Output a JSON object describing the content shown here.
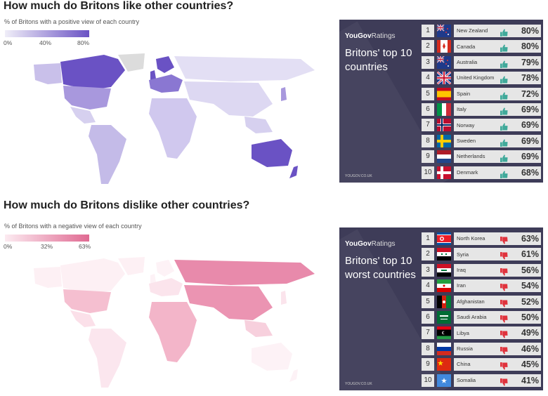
{
  "like": {
    "title": "How much do Britons like other countries?",
    "subtitle": "% of Britons with a positive view of each country",
    "legend": {
      "ticks": [
        "0%",
        "40%",
        "80%"
      ],
      "color_low": "#f0eef8",
      "color_high": "#6a52c4"
    },
    "panel": {
      "brand": "YouGov",
      "brand_suffix": "Ratings",
      "heading": "Britons' top 10 countries",
      "url": "YOUGOV.CO.UK",
      "rows": [
        {
          "rank": "1",
          "country": "New Zealand",
          "pct": "80%",
          "flag": "new-zealand"
        },
        {
          "rank": "2",
          "country": "Canada",
          "pct": "80%",
          "flag": "canada"
        },
        {
          "rank": "3",
          "country": "Australia",
          "pct": "79%",
          "flag": "australia"
        },
        {
          "rank": "4",
          "country": "United Kingdom",
          "pct": "78%",
          "flag": "united-kingdom"
        },
        {
          "rank": "5",
          "country": "Spain",
          "pct": "72%",
          "flag": "spain"
        },
        {
          "rank": "6",
          "country": "Italy",
          "pct": "69%",
          "flag": "italy"
        },
        {
          "rank": "7",
          "country": "Norway",
          "pct": "69%",
          "flag": "norway"
        },
        {
          "rank": "8",
          "country": "Sweden",
          "pct": "69%",
          "flag": "sweden"
        },
        {
          "rank": "9",
          "country": "Netherlands",
          "pct": "69%",
          "flag": "netherlands"
        },
        {
          "rank": "10",
          "country": "Denmark",
          "pct": "68%",
          "flag": "denmark"
        }
      ],
      "thumb_icon": "thumbs-up-icon",
      "thumb_color": "#3fa99a"
    }
  },
  "dislike": {
    "title": "How much do Britons dislike other countries?",
    "subtitle": "% of Britons with a negative view of each country",
    "legend": {
      "ticks": [
        "0%",
        "32%",
        "63%"
      ],
      "color_low": "#fcebf1",
      "color_high": "#e06a92"
    },
    "panel": {
      "brand": "YouGov",
      "brand_suffix": "Ratings",
      "heading": "Britons' top 10 worst countries",
      "url": "YOUGOV.CO.UK",
      "rows": [
        {
          "rank": "1",
          "country": "North Korea",
          "pct": "63%",
          "flag": "north-korea"
        },
        {
          "rank": "2",
          "country": "Syria",
          "pct": "61%",
          "flag": "syria"
        },
        {
          "rank": "3",
          "country": "Iraq",
          "pct": "56%",
          "flag": "iraq"
        },
        {
          "rank": "4",
          "country": "Iran",
          "pct": "54%",
          "flag": "iran"
        },
        {
          "rank": "5",
          "country": "Afghanistan",
          "pct": "52%",
          "flag": "afghanistan"
        },
        {
          "rank": "6",
          "country": "Saudi Arabia",
          "pct": "50%",
          "flag": "saudi-arabia"
        },
        {
          "rank": "7",
          "country": "Libya",
          "pct": "49%",
          "flag": "libya"
        },
        {
          "rank": "8",
          "country": "Russia",
          "pct": "46%",
          "flag": "russia"
        },
        {
          "rank": "9",
          "country": "China",
          "pct": "45%",
          "flag": "china"
        },
        {
          "rank": "10",
          "country": "Somalia",
          "pct": "41%",
          "flag": "somalia"
        }
      ],
      "thumb_icon": "thumbs-down-icon",
      "thumb_color": "#e0323c"
    }
  }
}
